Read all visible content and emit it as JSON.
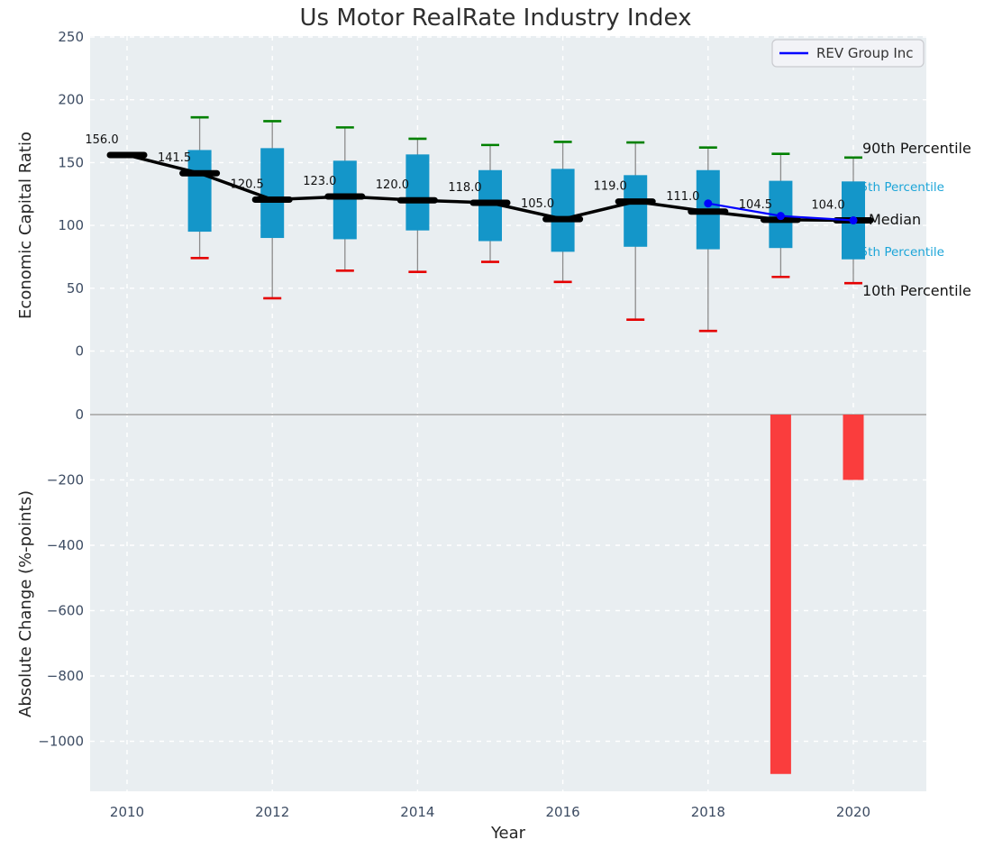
{
  "title": "Us Motor RealRate Industry Index",
  "legend": {
    "label": "REV Group Inc",
    "line_color": "#0000ff"
  },
  "annotations": {
    "p90": "90th Percentile",
    "p75": "75th Percentile",
    "median": "Median",
    "p25": "25th Percentile",
    "p10": "10th Percentile"
  },
  "axes": {
    "top": {
      "ylabel": "Economic Capital Ratio",
      "yticks": [
        250,
        200,
        150,
        100,
        50,
        0
      ]
    },
    "bottom": {
      "ylabel": "Absolute Change (%-points)",
      "yticks": [
        0,
        -200,
        -400,
        -600,
        -800,
        -1000
      ]
    },
    "xlabel": "Year",
    "xticks": [
      2010,
      2012,
      2014,
      2016,
      2018,
      2020
    ]
  },
  "colors": {
    "plot_bg": "#e9eef1",
    "grid": "#ffffff",
    "box_fill": "#1496c9",
    "whisker": "#8c8c8c",
    "cap_high": "#008000",
    "cap_low": "#e50000",
    "median_line": "#000000",
    "rev_line": "#0000ff",
    "bar": "#fa3d3d",
    "zero_line": "#b5b5b5",
    "tick_label": "#3d4c63",
    "cyan_label": "#1ca5d8"
  },
  "chart_data": [
    {
      "type": "boxplot+line",
      "title": "Us Motor RealRate Industry Index",
      "ylabel": "Economic Capital Ratio",
      "ylim": [
        -50,
        250
      ],
      "grid": true,
      "years": [
        2010,
        2011,
        2012,
        2013,
        2014,
        2015,
        2016,
        2017,
        2018,
        2019,
        2020
      ],
      "median": [
        156.0,
        141.5,
        120.5,
        123.0,
        120.0,
        118.0,
        105.0,
        119.0,
        111.0,
        104.5,
        104.0
      ],
      "q3": [
        null,
        160,
        161.5,
        151.5,
        156.5,
        144,
        145,
        140,
        144,
        135.5,
        135
      ],
      "q1": [
        null,
        95,
        90,
        89,
        96,
        87.5,
        79,
        83,
        81,
        82,
        73
      ],
      "whisker_high": [
        null,
        186,
        183,
        178,
        169,
        164,
        166.5,
        166,
        162,
        157,
        154
      ],
      "whisker_low": [
        null,
        74,
        42,
        64,
        63,
        71,
        55,
        25,
        16,
        59,
        54
      ],
      "series": [
        {
          "name": "REV Group Inc",
          "x": [
            2018,
            2019,
            2020
          ],
          "values": [
            117.5,
            107.5,
            104.0
          ],
          "color": "#0000ff"
        }
      ],
      "percentile_labels": [
        "90th Percentile",
        "75th Percentile",
        "Median",
        "25th Percentile",
        "10th Percentile"
      ],
      "legend_position": "upper right"
    },
    {
      "type": "bar",
      "ylabel": "Absolute Change (%-points)",
      "xlabel": "Year",
      "ylim": [
        -1150,
        75
      ],
      "grid": true,
      "x": [
        2019,
        2020
      ],
      "values": [
        -1100,
        -200
      ],
      "bar_color": "#fa3d3d"
    }
  ]
}
